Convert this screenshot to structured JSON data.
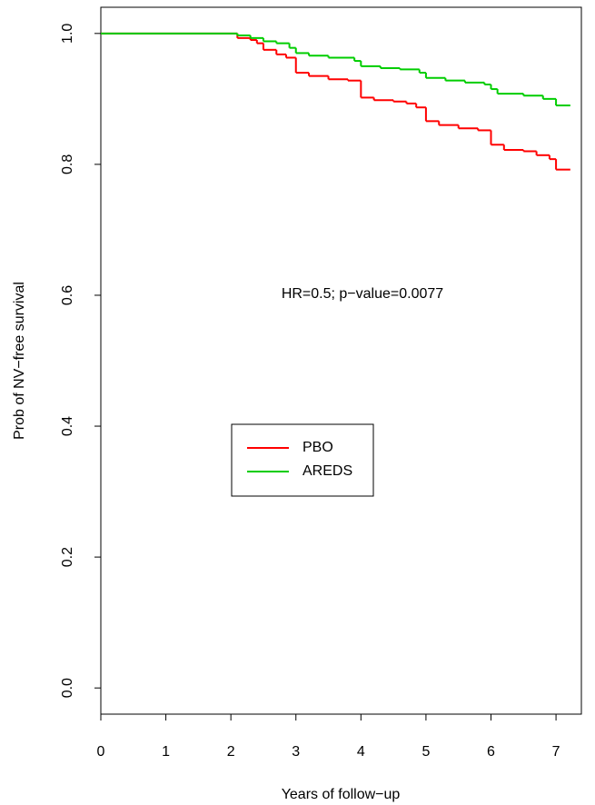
{
  "chart_data": {
    "type": "line",
    "step": "post",
    "xlabel": "Years of follow−up",
    "ylabel": "Prob of NV−free survival",
    "annotation": "HR=0.5; p−value=0.0077",
    "xlim": [
      0,
      7.39
    ],
    "ylim": [
      -0.04,
      1.04
    ],
    "xticks": [
      0,
      1,
      2,
      3,
      4,
      5,
      6,
      7
    ],
    "yticks": [
      {
        "value": 0,
        "label": "0.0"
      },
      0.2,
      0.4,
      0.6,
      0.8,
      {
        "value": 1,
        "label": "1.0"
      }
    ],
    "series": [
      {
        "name": "PBO",
        "color": "#ff0000",
        "x": [
          0,
          2.1,
          2.3,
          2.4,
          2.5,
          2.7,
          2.85,
          3.0,
          3.2,
          3.5,
          3.8,
          4.0,
          4.2,
          4.5,
          4.7,
          4.85,
          5.0,
          5.2,
          5.5,
          5.8,
          6.0,
          6.2,
          6.5,
          6.7,
          6.9,
          7.0,
          7.22
        ],
        "values": [
          1.0,
          0.993,
          0.99,
          0.985,
          0.975,
          0.968,
          0.963,
          0.94,
          0.935,
          0.93,
          0.928,
          0.902,
          0.898,
          0.896,
          0.893,
          0.887,
          0.866,
          0.86,
          0.855,
          0.852,
          0.83,
          0.822,
          0.82,
          0.814,
          0.808,
          0.792,
          0.792
        ]
      },
      {
        "name": "AREDS",
        "color": "#00cd00",
        "x": [
          0,
          2.1,
          2.3,
          2.5,
          2.7,
          2.9,
          3.0,
          3.2,
          3.5,
          3.9,
          4.0,
          4.3,
          4.6,
          4.9,
          5.0,
          5.3,
          5.6,
          5.9,
          6.0,
          6.1,
          6.5,
          6.8,
          7.0,
          7.22
        ],
        "values": [
          1.0,
          0.997,
          0.993,
          0.988,
          0.985,
          0.978,
          0.97,
          0.966,
          0.963,
          0.958,
          0.95,
          0.947,
          0.945,
          0.94,
          0.932,
          0.928,
          0.925,
          0.922,
          0.915,
          0.908,
          0.905,
          0.9,
          0.89,
          0.89
        ]
      }
    ]
  }
}
